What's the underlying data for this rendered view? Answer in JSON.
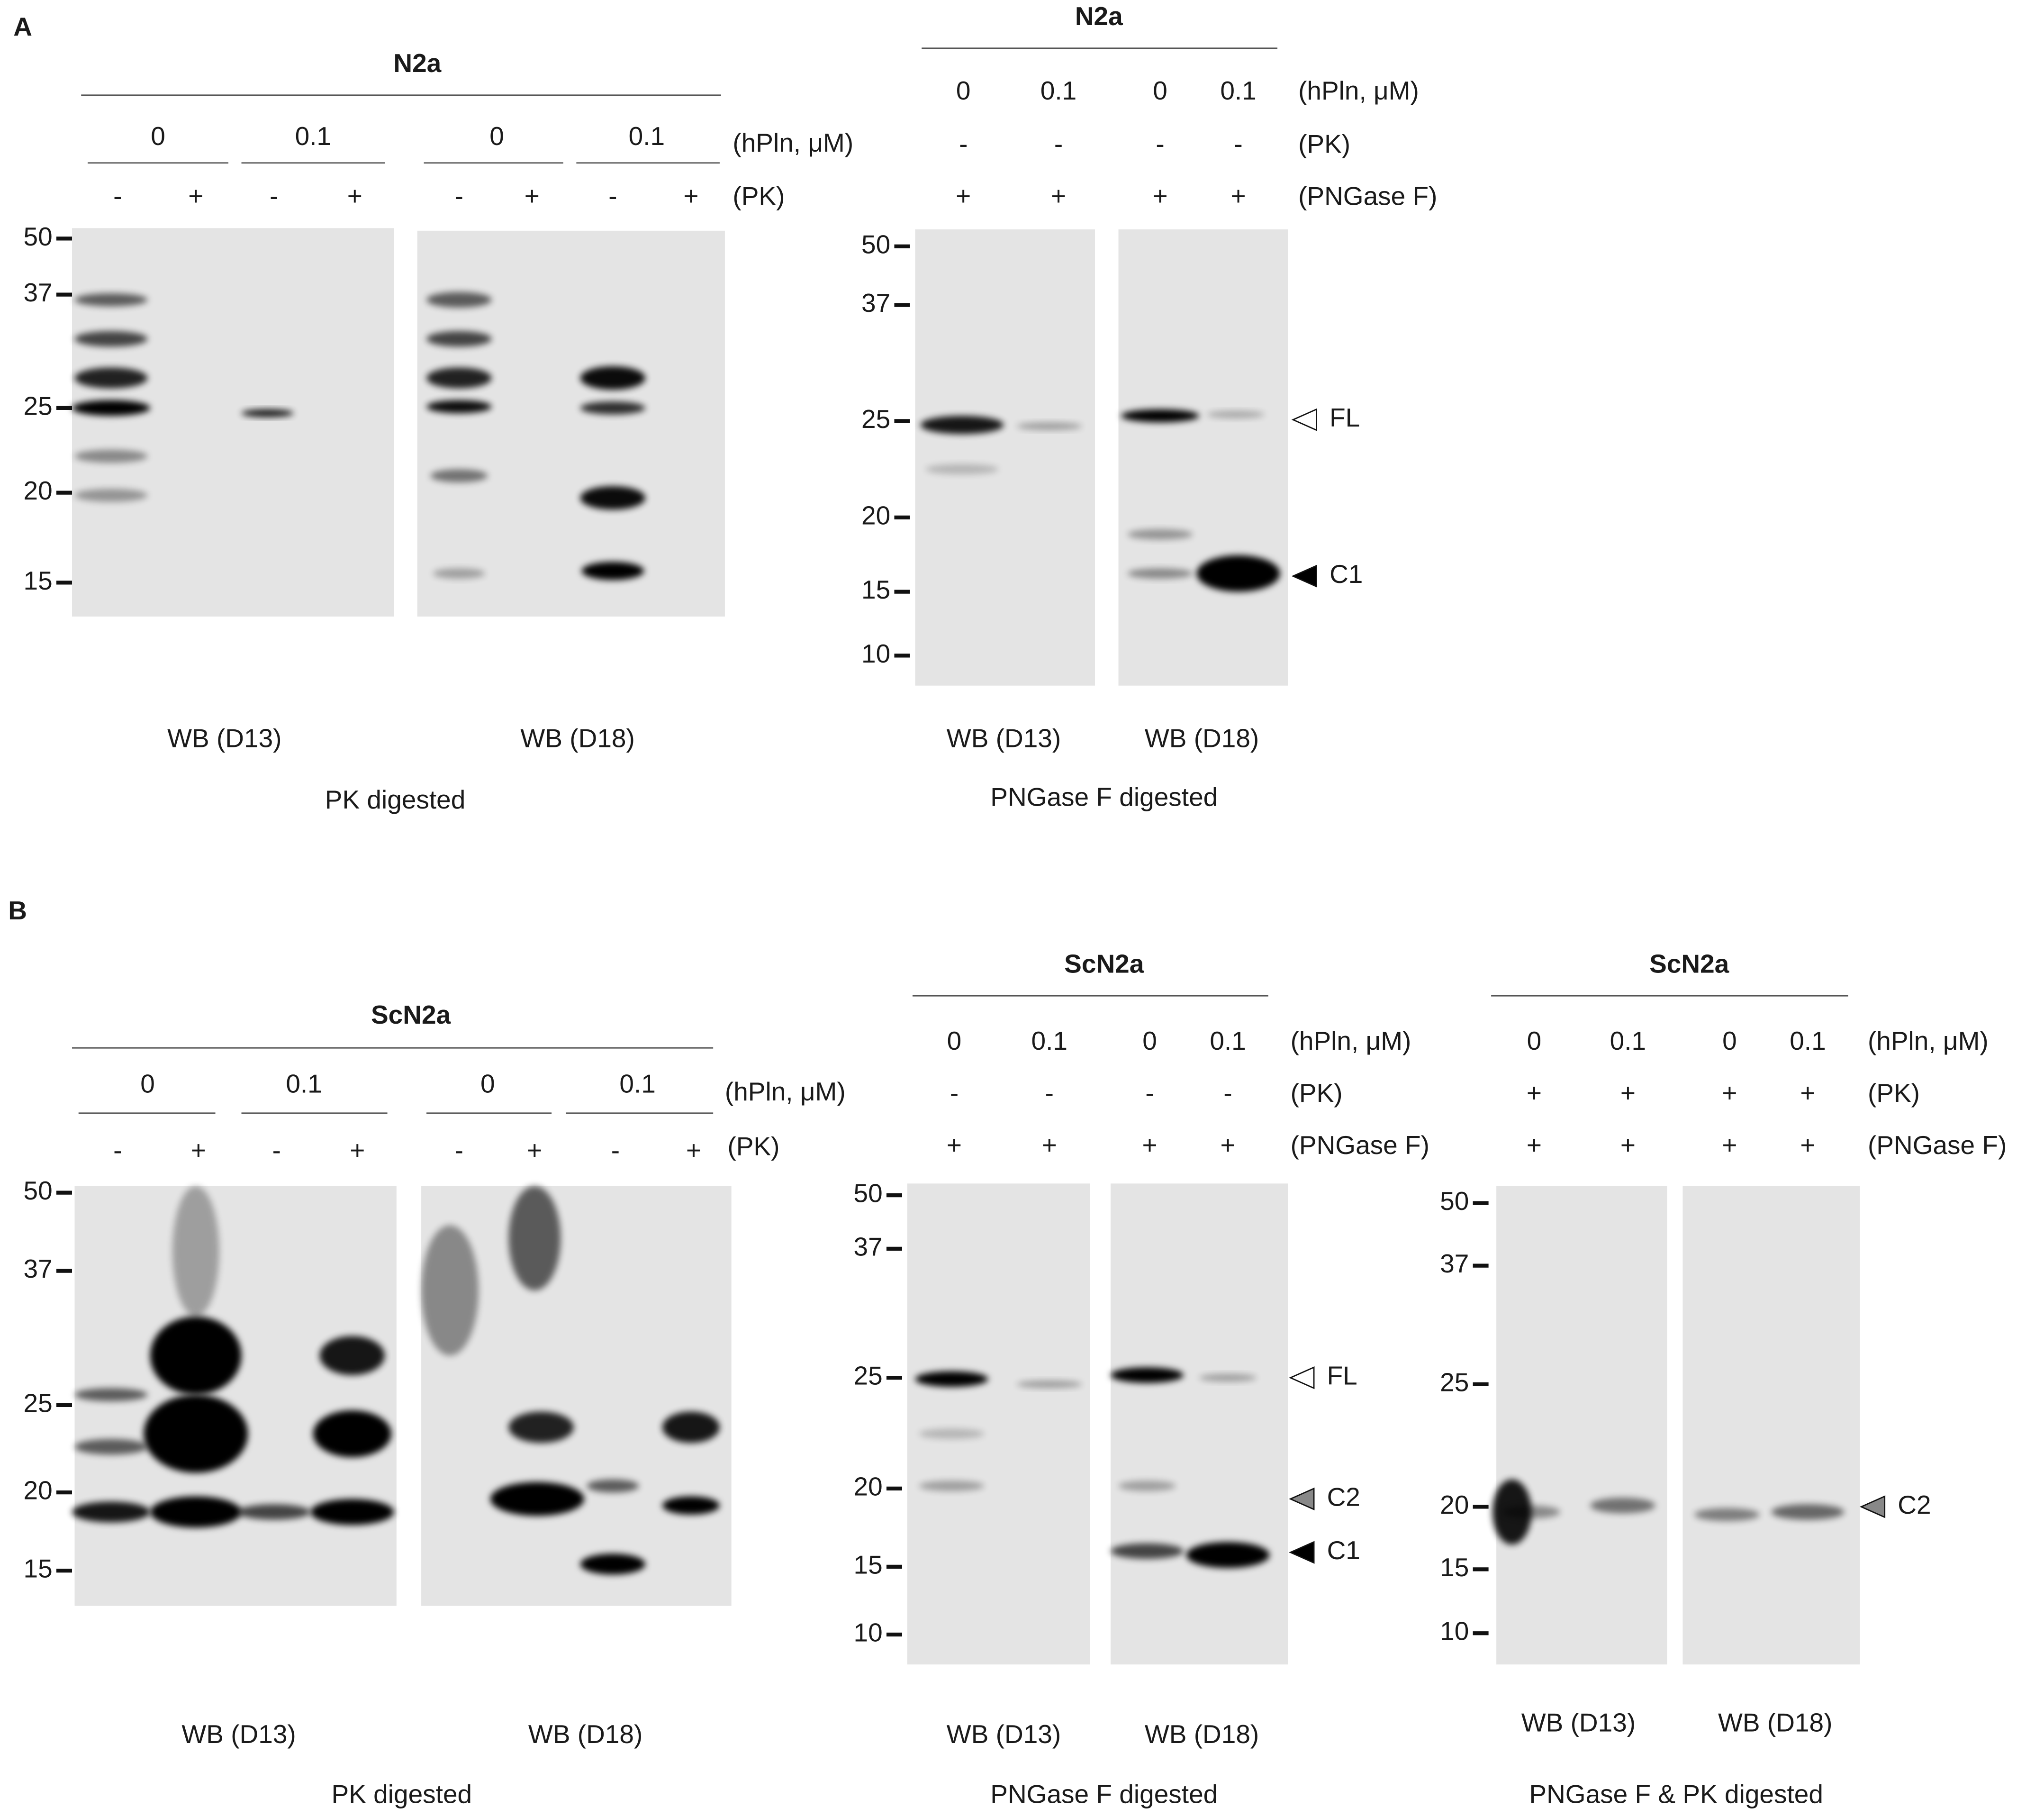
{
  "panel_a": {
    "label": "A",
    "pk_blot": {
      "cell_line": "N2a",
      "hpln": [
        "0",
        "0.1",
        "0",
        "0.1"
      ],
      "hpln_label": "(hPln, μM)",
      "pk": [
        "-",
        "+",
        "-",
        "+",
        "-",
        "+",
        "-",
        "+"
      ],
      "pk_label": "(PK)",
      "markers": [
        "50",
        "37",
        "25",
        "20",
        "15"
      ],
      "antibodies": [
        "WB (D13)",
        "WB (D18)"
      ],
      "caption": "PK digested"
    },
    "pngase_blot": {
      "cell_line": "N2a",
      "hpln": [
        "0",
        "0.1",
        "0",
        "0.1"
      ],
      "hpln_label": "(hPln, μM)",
      "pk": [
        "-",
        "-",
        "-",
        "-"
      ],
      "pk_label": "(PK)",
      "pngase": [
        "+",
        "+",
        "+",
        "+"
      ],
      "pngase_label": "(PNGase F)",
      "markers": [
        "50",
        "37",
        "25",
        "20",
        "15",
        "10"
      ],
      "bands": [
        "FL",
        "C1"
      ],
      "antibodies": [
        "WB (D13)",
        "WB (D18)"
      ],
      "caption": "PNGase F digested"
    }
  },
  "panel_b": {
    "label": "B",
    "pk_blot": {
      "cell_line": "ScN2a",
      "hpln": [
        "0",
        "0.1",
        "0",
        "0.1"
      ],
      "hpln_label": "(hPln, μM)",
      "pk": [
        "-",
        "+",
        "-",
        "+",
        "-",
        "+",
        "-",
        "+"
      ],
      "pk_label": "(PK)",
      "markers": [
        "50",
        "37",
        "25",
        "20",
        "15"
      ],
      "antibodies": [
        "WB (D13)",
        "WB (D18)"
      ],
      "caption": "PK digested"
    },
    "pngase_blot": {
      "cell_line": "ScN2a",
      "hpln": [
        "0",
        "0.1",
        "0",
        "0.1"
      ],
      "hpln_label": "(hPln, μM)",
      "pk": [
        "-",
        "-",
        "-",
        "-"
      ],
      "pk_label": "(PK)",
      "pngase": [
        "+",
        "+",
        "+",
        "+"
      ],
      "pngase_label": "(PNGase F)",
      "markers": [
        "50",
        "37",
        "25",
        "20",
        "15",
        "10"
      ],
      "bands": [
        "FL",
        "C2",
        "C1"
      ],
      "antibodies": [
        "WB (D13)",
        "WB (D18)"
      ],
      "caption": "PNGase F digested"
    },
    "pngase_pk_blot": {
      "cell_line": "ScN2a",
      "hpln": [
        "0",
        "0.1",
        "0",
        "0.1"
      ],
      "hpln_label": "(hPln, μM)",
      "pk": [
        "+",
        "+",
        "+",
        "+"
      ],
      "pk_label": "(PK)",
      "pngase": [
        "+",
        "+",
        "+",
        "+"
      ],
      "pngase_label": "(PNGase F)",
      "markers": [
        "50",
        "37",
        "25",
        "20",
        "15",
        "10"
      ],
      "bands": [
        "C2"
      ],
      "antibodies": [
        "WB (D13)",
        "WB (D18)"
      ],
      "caption": "PNGase F & PK digested"
    }
  }
}
